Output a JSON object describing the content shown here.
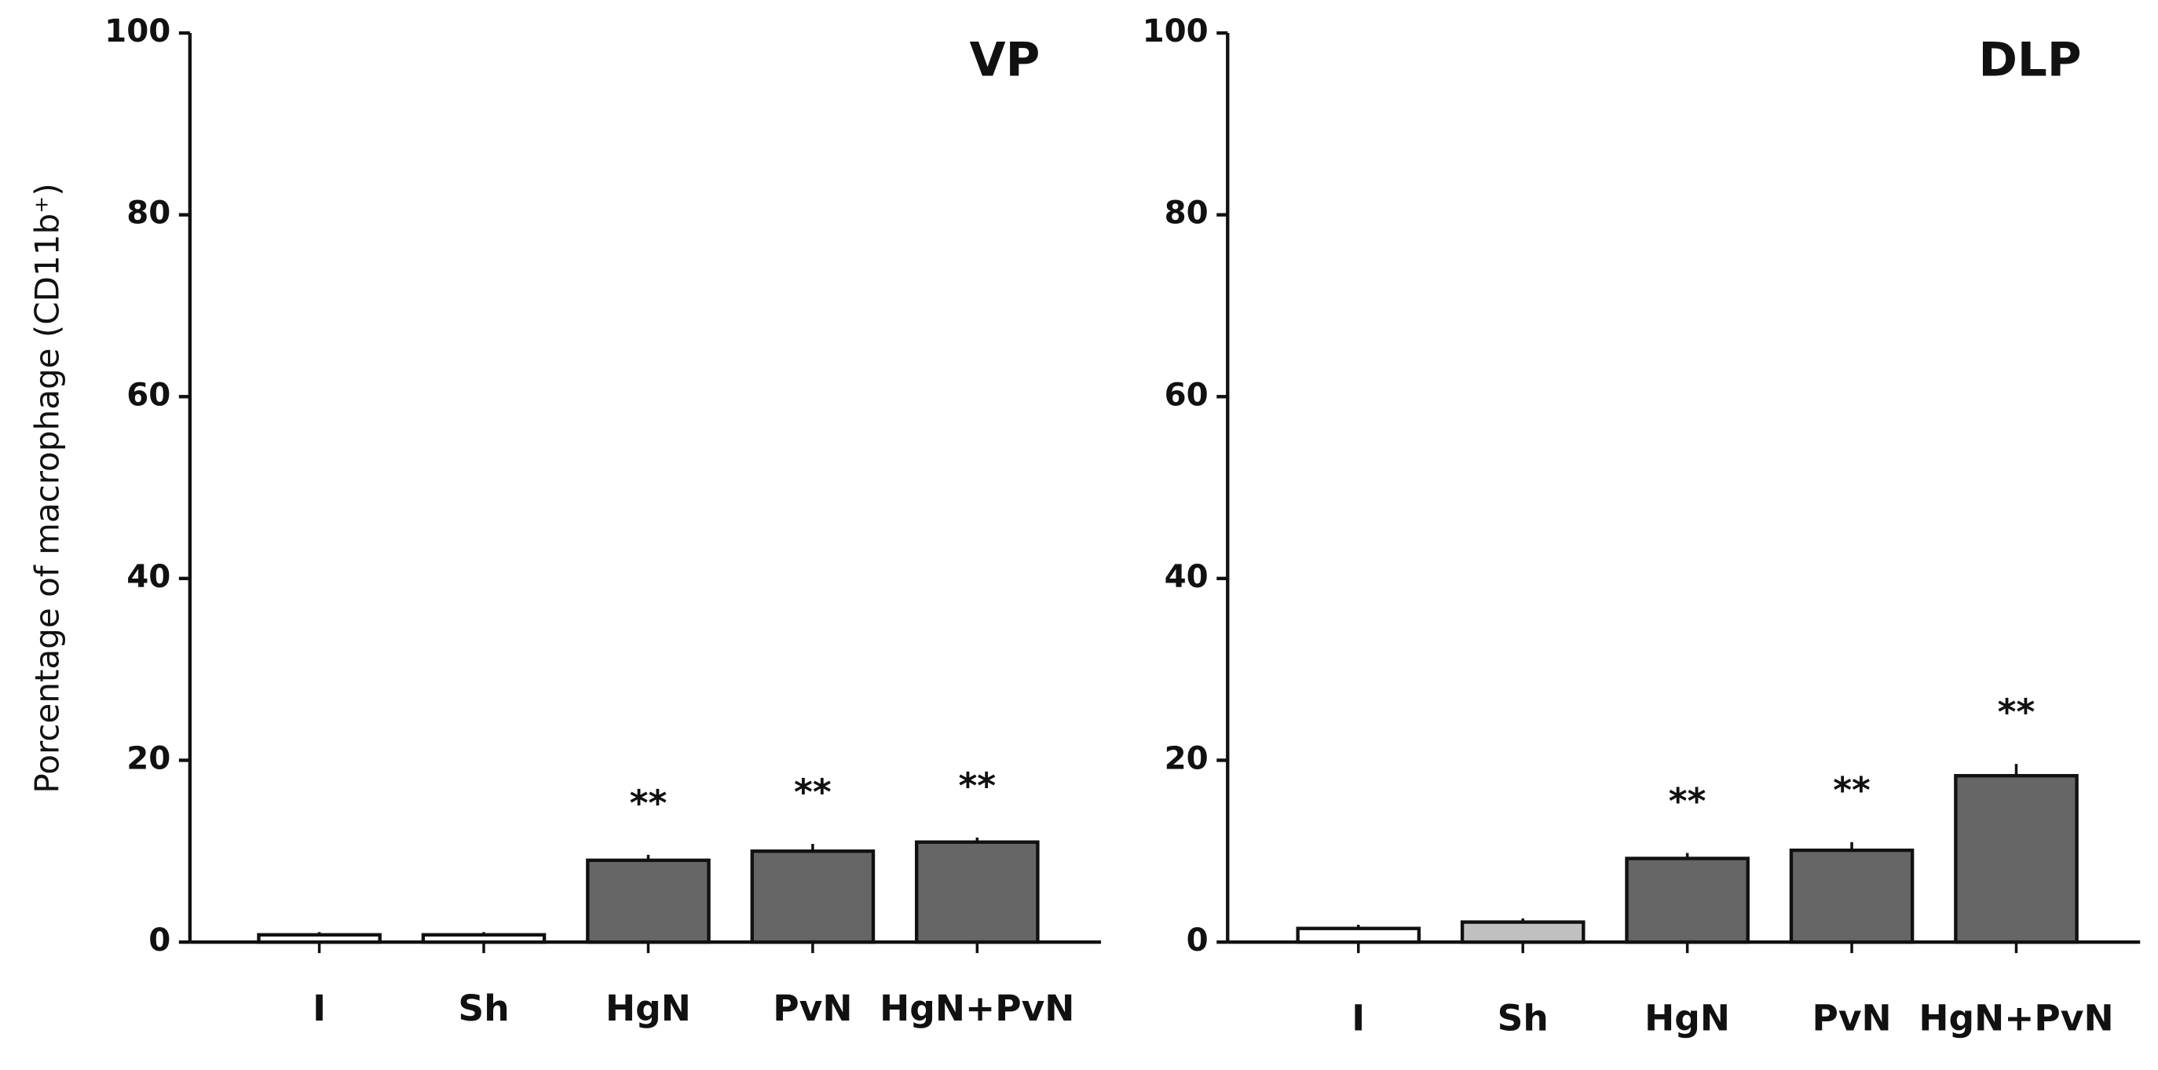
{
  "chart_data": [
    {
      "type": "bar",
      "title": "VP",
      "ylabel": "Porcentage of macrophage (CD11b⁺)",
      "categories": [
        "I",
        "Sh",
        "HgN",
        "PvN",
        "HgN+PvN"
      ],
      "values": [
        0.8,
        0.8,
        9,
        10,
        11
      ],
      "errors": [
        0.3,
        0.3,
        0.6,
        0.8,
        0.5
      ],
      "colors": [
        "#ffffff",
        "#ffffff",
        "#666666",
        "#666666",
        "#666666"
      ],
      "annotations": [
        null,
        null,
        "**",
        "**",
        "**"
      ],
      "ylim": [
        0,
        100
      ],
      "yticks": [
        0,
        20,
        40,
        60,
        80,
        100
      ]
    },
    {
      "type": "bar",
      "title": "DLP",
      "categories": [
        "I",
        "Sh",
        "HgN",
        "PvN",
        "HgN+PvN"
      ],
      "values": [
        1.5,
        2.2,
        9.2,
        10.1,
        18.3
      ],
      "errors": [
        0.4,
        0.4,
        0.6,
        0.9,
        1.3
      ],
      "colors": [
        "#ffffff",
        "#c0c0c0",
        "#666666",
        "#666666",
        "#666666"
      ],
      "annotations": [
        null,
        null,
        "**",
        "**",
        "**"
      ],
      "ylim": [
        0,
        100
      ],
      "yticks": [
        0,
        20,
        40,
        60,
        80,
        100
      ]
    }
  ]
}
